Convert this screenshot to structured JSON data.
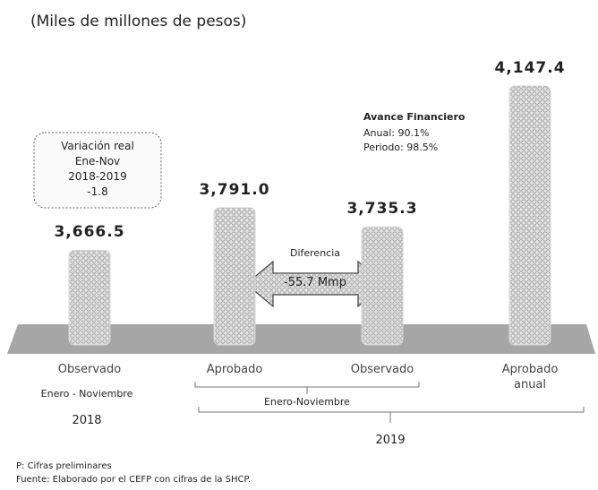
{
  "chart_data": {
    "type": "bar",
    "subtitle": "(Miles de millones de pesos)",
    "categories": [
      "Observado",
      "Aprobado",
      "Observado",
      "Aprobado anual"
    ],
    "values": [
      3666.5,
      3791.0,
      3735.3,
      4147.4
    ],
    "value_labels": [
      "3,666.5",
      "3,791.0",
      "3,735.3",
      "4,147.4"
    ],
    "ylim": [
      3390,
      4150
    ],
    "color": "#d4d4d4",
    "variation_box": [
      "Variación real",
      "Ene-Nov",
      "2018-2019",
      "-1.8"
    ],
    "avance": {
      "title": "Avance Financiero",
      "lines": [
        "Anual: 90.1%",
        "Periodo: 98.5%"
      ]
    },
    "difference": {
      "label": "Diferencia",
      "text": "-55.7 Mmp"
    },
    "groups": {
      "period_2018": "Enero - Noviembre",
      "year_2018": "2018",
      "period_2019": "Enero-Noviembre",
      "year_2019": "2019"
    },
    "footnotes": [
      "P: Cifras preliminares",
      "Fuente: Elaborado por el CEFP con cifras de la SHCP."
    ]
  }
}
